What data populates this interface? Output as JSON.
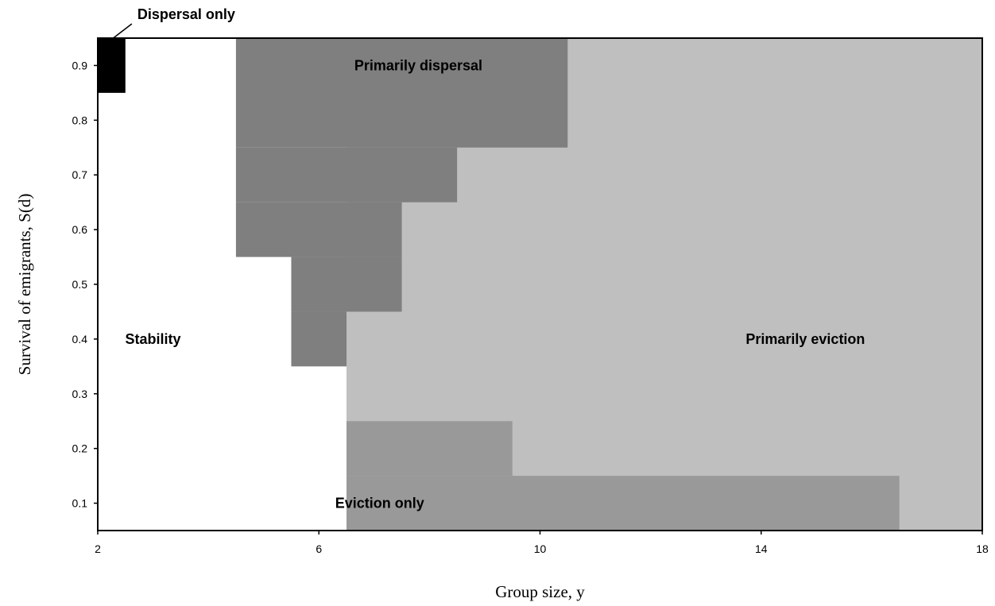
{
  "chart_data": {
    "type": "heatmap",
    "title": "",
    "xlabel": "Group size, y",
    "ylabel": "Survival of emigrants, S(d)",
    "xlim": [
      2,
      18
    ],
    "ylim": [
      0.05,
      0.95
    ],
    "x_ticks": [
      2,
      6,
      10,
      14,
      18
    ],
    "y_ticks": [
      0.1,
      0.2,
      0.3,
      0.4,
      0.5,
      0.6,
      0.7,
      0.8,
      0.9
    ],
    "grid": false,
    "categories": [
      {
        "name": "Stability",
        "color": "#ffffff"
      },
      {
        "name": "Dispersal only",
        "color": "#000000"
      },
      {
        "name": "Primarily dispersal",
        "color": "#7f7f7f"
      },
      {
        "name": "Primarily eviction",
        "color": "#bfbfbf"
      },
      {
        "name": "Eviction only",
        "color": "#999999"
      }
    ],
    "regions": [
      {
        "category": "Primarily eviction",
        "x0": 6.5,
        "x1": 18,
        "y0": 0.05,
        "y1": 0.95
      },
      {
        "category": "Primarily dispersal",
        "x0": 4.5,
        "x1": 10.5,
        "y0": 0.75,
        "y1": 0.95
      },
      {
        "category": "Primarily dispersal",
        "x0": 4.5,
        "x1": 8.5,
        "y0": 0.65,
        "y1": 0.75
      },
      {
        "category": "Primarily dispersal",
        "x0": 4.5,
        "x1": 7.5,
        "y0": 0.55,
        "y1": 0.65
      },
      {
        "category": "Primarily dispersal",
        "x0": 5.5,
        "x1": 7.5,
        "y0": 0.45,
        "y1": 0.55
      },
      {
        "category": "Primarily dispersal",
        "x0": 5.5,
        "x1": 6.5,
        "y0": 0.35,
        "y1": 0.45
      },
      {
        "category": "Eviction only",
        "x0": 6.5,
        "x1": 9.5,
        "y0": 0.15,
        "y1": 0.25
      },
      {
        "category": "Eviction only",
        "x0": 6.5,
        "x1": 16.5,
        "y0": 0.05,
        "y1": 0.15
      },
      {
        "category": "Dispersal only",
        "x0": 2,
        "x1": 2.5,
        "y0": 0.85,
        "y1": 0.95
      }
    ],
    "annotations": [
      {
        "text": "Dispersal only",
        "x": 2.3,
        "y": 0.95,
        "anchor": "above",
        "leader": true
      },
      {
        "text": "Primarily dispersal",
        "x": 7.8,
        "y": 0.9
      },
      {
        "text": "Stability",
        "x": 3.0,
        "y": 0.4
      },
      {
        "text": "Primarily eviction",
        "x": 14.8,
        "y": 0.4
      },
      {
        "text": "Eviction only",
        "x": 7.1,
        "y": 0.1
      }
    ]
  }
}
